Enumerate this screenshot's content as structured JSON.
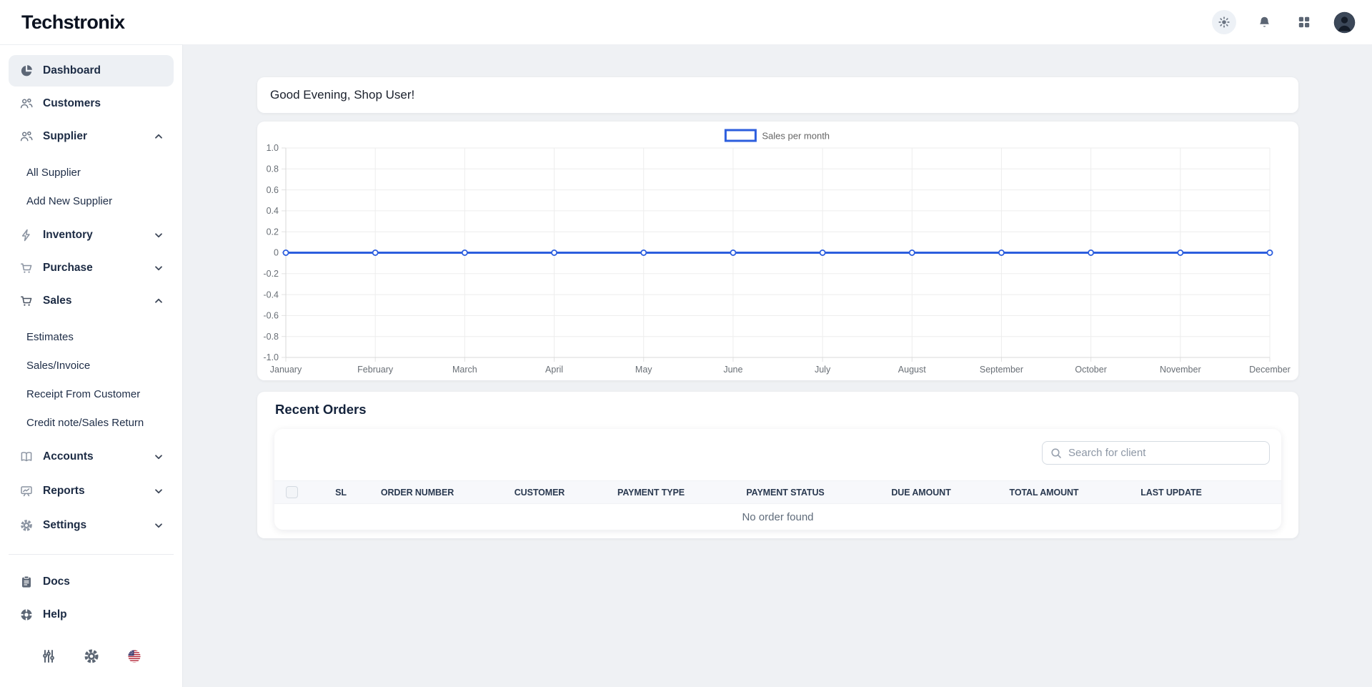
{
  "app": {
    "brand": "Techstronix"
  },
  "header": {
    "icons": [
      {
        "name": "theme-toggle-sun"
      },
      {
        "name": "notifications-bell"
      },
      {
        "name": "apps-grid"
      },
      {
        "name": "user-avatar"
      }
    ]
  },
  "sidebar": {
    "items": [
      {
        "label": "Dashboard",
        "icon": "pie-chart",
        "active": true
      },
      {
        "label": "Customers",
        "icon": "users"
      },
      {
        "label": "Supplier",
        "icon": "users",
        "expanded": true,
        "children": [
          "All Supplier",
          "Add New Supplier"
        ]
      },
      {
        "label": "Inventory",
        "icon": "lightning",
        "expanded": false
      },
      {
        "label": "Purchase",
        "icon": "cart",
        "expanded": false
      },
      {
        "label": "Sales",
        "icon": "cart",
        "expanded": true,
        "children": [
          "Estimates",
          "Sales/Invoice",
          "Receipt From Customer",
          "Credit note/Sales Return"
        ]
      },
      {
        "label": "Accounts",
        "icon": "open-book",
        "expanded": false
      },
      {
        "label": "Reports",
        "icon": "chart-board",
        "expanded": false
      },
      {
        "label": "Settings",
        "icon": "gear",
        "expanded": false
      }
    ],
    "footer_items": [
      {
        "label": "Docs",
        "icon": "clipboard"
      },
      {
        "label": "Help",
        "icon": "lifebuoy"
      }
    ],
    "footer_icons": [
      "filters",
      "settings",
      "language-us-flag"
    ]
  },
  "main": {
    "greeting": "Good Evening, Shop User!",
    "recent_orders": {
      "title": "Recent Orders",
      "search_placeholder": "Search for client",
      "columns": [
        "SL",
        "ORDER NUMBER",
        "CUSTOMER",
        "PAYMENT TYPE",
        "PAYMENT STATUS",
        "DUE AMOUNT",
        "TOTAL AMOUNT",
        "LAST UPDATE"
      ],
      "empty_message": "No order found"
    }
  },
  "chart_data": {
    "type": "line",
    "x": [
      "January",
      "February",
      "March",
      "April",
      "May",
      "June",
      "July",
      "August",
      "September",
      "October",
      "November",
      "December"
    ],
    "series": [
      {
        "name": "Sales per month",
        "values": [
          0,
          0,
          0,
          0,
          0,
          0,
          0,
          0,
          0,
          0,
          0,
          0
        ]
      }
    ],
    "ylim": [
      -1.0,
      1.0
    ],
    "ytick_labels": [
      "1.0",
      "0.8",
      "0.6",
      "0.4",
      "0.2",
      "0",
      "-0.2",
      "-0.4",
      "-0.6",
      "-0.8",
      "-1.0"
    ],
    "grid": true,
    "legend_position": "top",
    "line_color": "#2c5ede",
    "point_style": "hollow-circle"
  },
  "colors": {
    "accent_blue": "#2c5ede",
    "page_bg": "#eff1f4",
    "sidebar_text": "#1c2b44",
    "icon_gray": "#6e7887",
    "muted_text": "#5f6b7a"
  }
}
